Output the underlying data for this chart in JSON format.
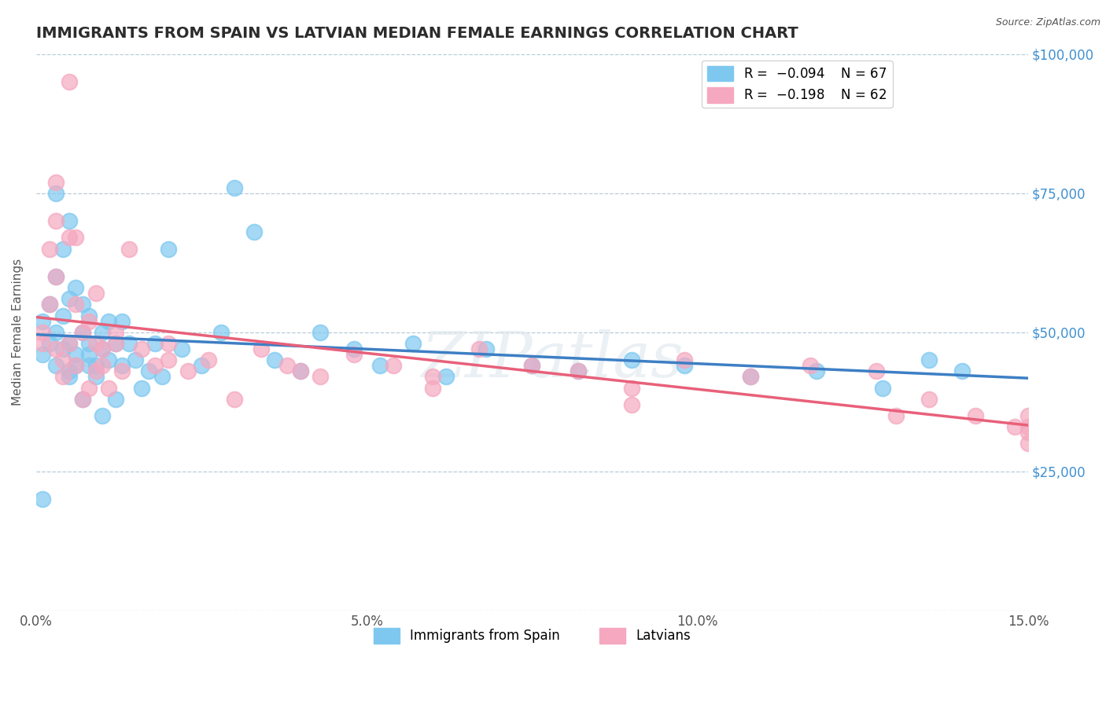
{
  "title": "IMMIGRANTS FROM SPAIN VS LATVIAN MEDIAN FEMALE EARNINGS CORRELATION CHART",
  "source_text": "Source: ZipAtlas.com",
  "ylabel": "Median Female Earnings",
  "watermark": "ZIPatlas",
  "xlim": [
    0.0,
    0.15
  ],
  "ylim": [
    0,
    100000
  ],
  "xticks": [
    0.0,
    0.05,
    0.1,
    0.15
  ],
  "xtick_labels": [
    "0.0%",
    "5.0%",
    "10.0%",
    "15.0%"
  ],
  "yticks": [
    0,
    25000,
    50000,
    75000,
    100000
  ],
  "ytick_labels_right": [
    "",
    "$25,000",
    "$50,000",
    "$75,000",
    "$100,000"
  ],
  "blue_color": "#7ec8f0",
  "pink_color": "#f5a8c0",
  "blue_line_color": "#3d7fc4",
  "pink_line_color": "#e8607a",
  "ytick_color": "#4090d0",
  "legend_label_blue": "Immigrants from Spain",
  "legend_label_pink": "Latvians",
  "background_color": "#ffffff",
  "grid_color": "#b8ccd8",
  "title_color": "#2c2c2c",
  "title_fontsize": 14,
  "axis_label_fontsize": 11,
  "tick_fontsize": 12,
  "blue_scatter_x": [
    0.001,
    0.001,
    0.002,
    0.002,
    0.003,
    0.003,
    0.003,
    0.004,
    0.004,
    0.004,
    0.005,
    0.005,
    0.005,
    0.005,
    0.006,
    0.006,
    0.006,
    0.007,
    0.007,
    0.007,
    0.008,
    0.008,
    0.008,
    0.009,
    0.009,
    0.01,
    0.01,
    0.01,
    0.011,
    0.011,
    0.012,
    0.012,
    0.013,
    0.013,
    0.014,
    0.015,
    0.016,
    0.017,
    0.018,
    0.019,
    0.02,
    0.022,
    0.025,
    0.028,
    0.03,
    0.033,
    0.036,
    0.04,
    0.043,
    0.048,
    0.052,
    0.057,
    0.062,
    0.068,
    0.075,
    0.082,
    0.09,
    0.098,
    0.108,
    0.118,
    0.128,
    0.135,
    0.14,
    0.001,
    0.003,
    0.005,
    0.008
  ],
  "blue_scatter_y": [
    46000,
    52000,
    48000,
    55000,
    44000,
    50000,
    60000,
    47000,
    53000,
    65000,
    42000,
    56000,
    48000,
    70000,
    46000,
    58000,
    44000,
    50000,
    38000,
    55000,
    53000,
    46000,
    48000,
    44000,
    42000,
    50000,
    47000,
    35000,
    52000,
    45000,
    48000,
    38000,
    44000,
    52000,
    48000,
    45000,
    40000,
    43000,
    48000,
    42000,
    65000,
    47000,
    44000,
    50000,
    76000,
    68000,
    45000,
    43000,
    50000,
    47000,
    44000,
    48000,
    42000,
    47000,
    44000,
    43000,
    45000,
    44000,
    42000,
    43000,
    40000,
    45000,
    43000,
    20000,
    75000,
    43000,
    44000
  ],
  "pink_scatter_x": [
    0.001,
    0.001,
    0.002,
    0.002,
    0.003,
    0.003,
    0.003,
    0.004,
    0.004,
    0.005,
    0.005,
    0.006,
    0.006,
    0.007,
    0.007,
    0.008,
    0.008,
    0.009,
    0.009,
    0.01,
    0.01,
    0.011,
    0.012,
    0.013,
    0.014,
    0.016,
    0.018,
    0.02,
    0.023,
    0.026,
    0.03,
    0.034,
    0.038,
    0.043,
    0.048,
    0.054,
    0.06,
    0.067,
    0.075,
    0.082,
    0.09,
    0.098,
    0.108,
    0.117,
    0.127,
    0.135,
    0.142,
    0.148,
    0.15,
    0.003,
    0.006,
    0.009,
    0.012,
    0.02,
    0.04,
    0.06,
    0.09,
    0.13,
    0.15,
    0.15,
    0.005,
    0.15
  ],
  "pink_scatter_y": [
    50000,
    48000,
    65000,
    55000,
    47000,
    70000,
    60000,
    45000,
    42000,
    67000,
    48000,
    55000,
    44000,
    50000,
    38000,
    52000,
    40000,
    48000,
    43000,
    47000,
    44000,
    40000,
    48000,
    43000,
    65000,
    47000,
    44000,
    48000,
    43000,
    45000,
    38000,
    47000,
    44000,
    42000,
    46000,
    44000,
    42000,
    47000,
    44000,
    43000,
    40000,
    45000,
    42000,
    44000,
    43000,
    38000,
    35000,
    33000,
    30000,
    77000,
    67000,
    57000,
    50000,
    45000,
    43000,
    40000,
    37000,
    35000,
    35000,
    33000,
    95000,
    32000
  ]
}
